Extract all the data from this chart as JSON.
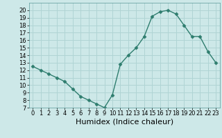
{
  "x": [
    0,
    1,
    2,
    3,
    4,
    5,
    6,
    7,
    8,
    9,
    10,
    11,
    12,
    13,
    14,
    15,
    16,
    17,
    18,
    19,
    20,
    21,
    22,
    23
  ],
  "y": [
    12.5,
    12.0,
    11.5,
    11.0,
    10.5,
    9.5,
    8.5,
    8.0,
    7.5,
    7.0,
    8.7,
    12.8,
    14.0,
    15.0,
    16.5,
    19.2,
    19.8,
    20.0,
    19.5,
    18.0,
    16.5,
    16.5,
    14.5,
    13.0
  ],
  "line_color": "#2e7d6e",
  "marker": "D",
  "marker_size": 2.5,
  "bg_color": "#cde8e8",
  "grid_color": "#b0d4d4",
  "xlabel": "Humidex (Indice chaleur)",
  "ylim": [
    7,
    21
  ],
  "xlim": [
    -0.5,
    23.5
  ],
  "yticks": [
    7,
    8,
    9,
    10,
    11,
    12,
    13,
    14,
    15,
    16,
    17,
    18,
    19,
    20
  ],
  "xticks": [
    0,
    1,
    2,
    3,
    4,
    5,
    6,
    7,
    8,
    9,
    10,
    11,
    12,
    13,
    14,
    15,
    16,
    17,
    18,
    19,
    20,
    21,
    22,
    23
  ],
  "tick_label_size": 6,
  "xlabel_size": 8,
  "line_width": 1.0
}
